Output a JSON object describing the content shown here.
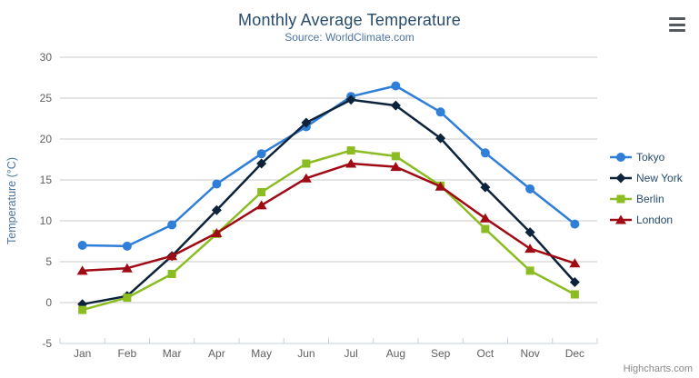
{
  "chart_data": {
    "type": "line",
    "title": "Monthly Average Temperature",
    "subtitle": "Source: WorldClimate.com",
    "credits": "Highcharts.com",
    "xlabel": "",
    "ylabel": "Temperature (°C)",
    "ylim": [
      -5,
      30
    ],
    "ytick_step": 5,
    "ytick_labels": [
      "-5",
      "0",
      "5",
      "10",
      "15",
      "20",
      "25",
      "30"
    ],
    "grid": true,
    "legend_position": "right",
    "categories": [
      "Jan",
      "Feb",
      "Mar",
      "Apr",
      "May",
      "Jun",
      "Jul",
      "Aug",
      "Sep",
      "Oct",
      "Nov",
      "Dec"
    ],
    "series": [
      {
        "name": "Tokyo",
        "color": "#2f7ed8",
        "marker": "circle",
        "values": [
          7.0,
          6.9,
          9.5,
          14.5,
          18.2,
          21.5,
          25.2,
          26.5,
          23.3,
          18.3,
          13.9,
          9.6
        ]
      },
      {
        "name": "New York",
        "color": "#0d233a",
        "marker": "diamond",
        "values": [
          -0.2,
          0.8,
          5.7,
          11.3,
          17.0,
          22.0,
          24.8,
          24.1,
          20.1,
          14.1,
          8.6,
          2.5
        ]
      },
      {
        "name": "Berlin",
        "color": "#8bbc21",
        "marker": "square",
        "values": [
          -0.9,
          0.6,
          3.5,
          8.4,
          13.5,
          17.0,
          18.6,
          17.9,
          14.3,
          9.0,
          3.9,
          1.0
        ]
      },
      {
        "name": "London",
        "color": "#a00a14",
        "marker": "triangle",
        "values": [
          3.9,
          4.2,
          5.7,
          8.5,
          11.9,
          15.2,
          17.0,
          16.6,
          14.2,
          10.3,
          6.6,
          4.8
        ]
      }
    ],
    "colors": {
      "title": "#274b6d",
      "subtitle": "#4d759e",
      "axis_label": "#606060",
      "grid_line": "#c8c8c8",
      "axis_line": "#c0d0e0",
      "legend_text": "#274b6d",
      "credits_text": "#8a8a8a"
    }
  },
  "icons": {
    "context_menu": "hamburger-menu-icon"
  }
}
